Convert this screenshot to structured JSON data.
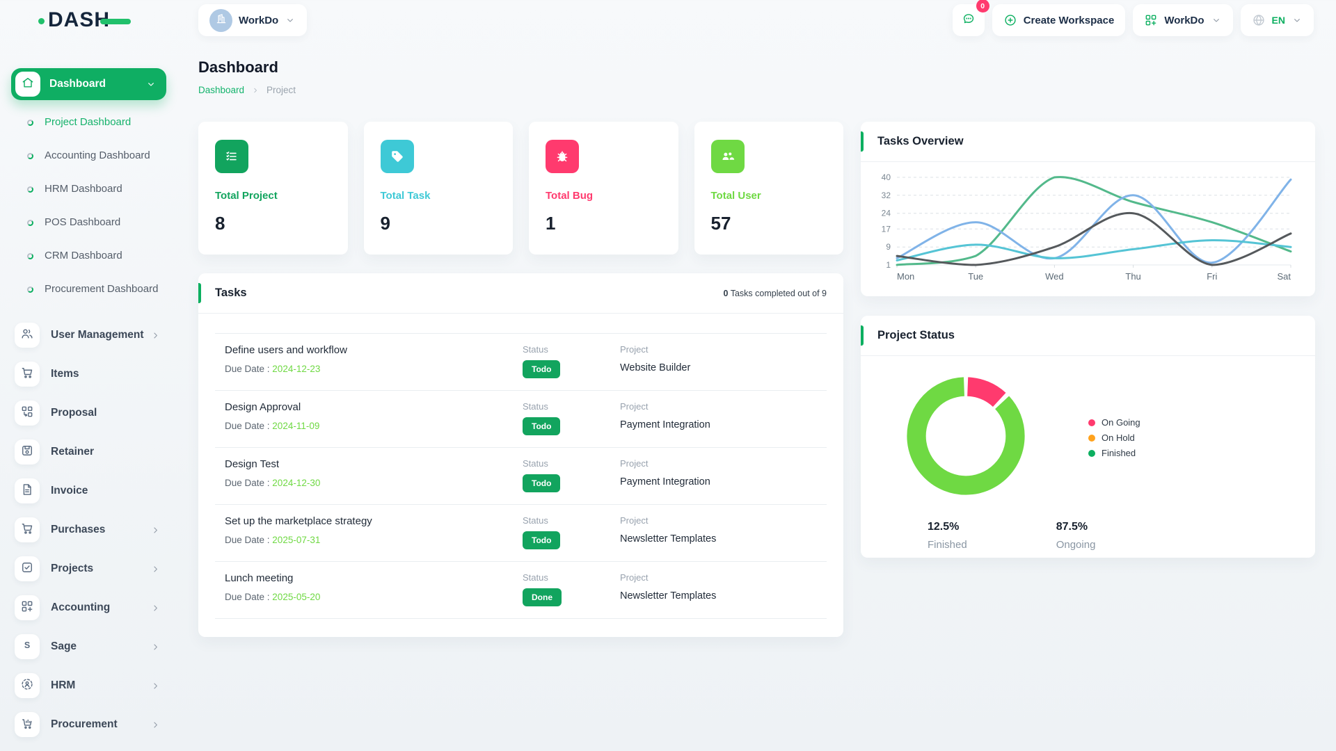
{
  "brand": {
    "logo_text": "DASH"
  },
  "topbar": {
    "workspace_switcher_label": "WorkDo",
    "messages_badge": "0",
    "create_workspace_label": "Create Workspace",
    "workdo_menu_label": "WorkDo",
    "language_label": "EN"
  },
  "sidebar": {
    "active_item": "Dashboard",
    "dashboard_children": [
      {
        "label": "Project Dashboard",
        "active": true
      },
      {
        "label": "Accounting Dashboard",
        "active": false
      },
      {
        "label": "HRM Dashboard",
        "active": false
      },
      {
        "label": "POS Dashboard",
        "active": false
      },
      {
        "label": "CRM Dashboard",
        "active": false
      },
      {
        "label": "Procurement Dashboard",
        "active": false
      }
    ],
    "items": [
      {
        "label": "User Management",
        "icon": "users",
        "chevron": true
      },
      {
        "label": "Items",
        "icon": "cart",
        "chevron": false
      },
      {
        "label": "Proposal",
        "icon": "proposal",
        "chevron": false
      },
      {
        "label": "Retainer",
        "icon": "retainer",
        "chevron": false
      },
      {
        "label": "Invoice",
        "icon": "invoice",
        "chevron": false
      },
      {
        "label": "Purchases",
        "icon": "cart",
        "chevron": true
      },
      {
        "label": "Projects",
        "icon": "checkbox",
        "chevron": true
      },
      {
        "label": "Accounting",
        "icon": "grid-plus",
        "chevron": true
      },
      {
        "label": "Sage",
        "icon": "sage",
        "chevron": true
      },
      {
        "label": "HRM",
        "icon": "hrm",
        "chevron": true
      },
      {
        "label": "Procurement",
        "icon": "procurement",
        "chevron": true
      }
    ]
  },
  "page": {
    "title": "Dashboard",
    "breadcrumb": [
      "Dashboard",
      "Project"
    ]
  },
  "stats": [
    {
      "label": "Total Project",
      "value": "8",
      "color": "#12a45e",
      "icon": "checklist"
    },
    {
      "label": "Total Task",
      "value": "9",
      "color": "#3EC9D6",
      "icon": "tag"
    },
    {
      "label": "Total Bug",
      "value": "1",
      "color": "#FF3A6E",
      "icon": "bug"
    },
    {
      "label": "Total User",
      "value": "57",
      "color": "#6FD943",
      "icon": "users-group"
    }
  ],
  "tasks_card": {
    "title": "Tasks",
    "summary_count": "0",
    "summary_rest": " Tasks completed out of 9",
    "status_header": "Status",
    "project_header": "Project",
    "due_date_prefix": "Due Date : ",
    "rows": [
      {
        "name": "Define users and workflow",
        "due_date": "2024-12-23",
        "status": "Todo",
        "project": "Website Builder"
      },
      {
        "name": "Design Approval",
        "due_date": "2024-11-09",
        "status": "Todo",
        "project": "Payment Integration"
      },
      {
        "name": "Design Test",
        "due_date": "2024-12-30",
        "status": "Todo",
        "project": "Payment Integration"
      },
      {
        "name": "Set up the marketplace strategy",
        "due_date": "2025-07-31",
        "status": "Todo",
        "project": "Newsletter Templates"
      },
      {
        "name": "Lunch meeting",
        "due_date": "2025-05-20",
        "status": "Done",
        "project": "Newsletter Templates"
      }
    ]
  },
  "chart_data": [
    {
      "type": "line",
      "title": "Tasks Overview",
      "x": [
        "Mon",
        "Tue",
        "Wed",
        "Thu",
        "Fri",
        "Sat"
      ],
      "y_ticks": [
        40,
        32,
        24,
        17,
        9,
        1
      ],
      "ylim": [
        1,
        40
      ],
      "grid": "dashed-horizontal",
      "legend_position": "none",
      "series": [
        {
          "name": "series-green",
          "color": "#53b98b",
          "values": [
            1,
            5,
            40,
            29,
            20,
            7
          ]
        },
        {
          "name": "series-blue",
          "color": "#80b3e8",
          "values": [
            4,
            20,
            4,
            32,
            2,
            39
          ]
        },
        {
          "name": "series-cyan",
          "color": "#55c4d5",
          "values": [
            3,
            10,
            4,
            8,
            12,
            9
          ]
        },
        {
          "name": "series-dark",
          "color": "#55595c",
          "values": [
            5,
            1,
            9,
            24,
            1,
            15
          ]
        }
      ]
    },
    {
      "type": "donut",
      "title": "Project Status",
      "slices": [
        {
          "color": "#FF3A6E",
          "value": 12.5
        },
        {
          "color": "#6FD943",
          "value": 87.5
        }
      ],
      "legend_position": "right",
      "legend_entries": [
        {
          "label": "On Going",
          "color": "#FF3A6E"
        },
        {
          "label": "On Hold",
          "color": "#FFA21D"
        },
        {
          "label": "Finished",
          "color": "#0CAF60"
        }
      ],
      "stats": [
        {
          "value": "12.5%",
          "label": "Finished"
        },
        {
          "value": "87.5%",
          "label": "Ongoing"
        }
      ]
    }
  ]
}
